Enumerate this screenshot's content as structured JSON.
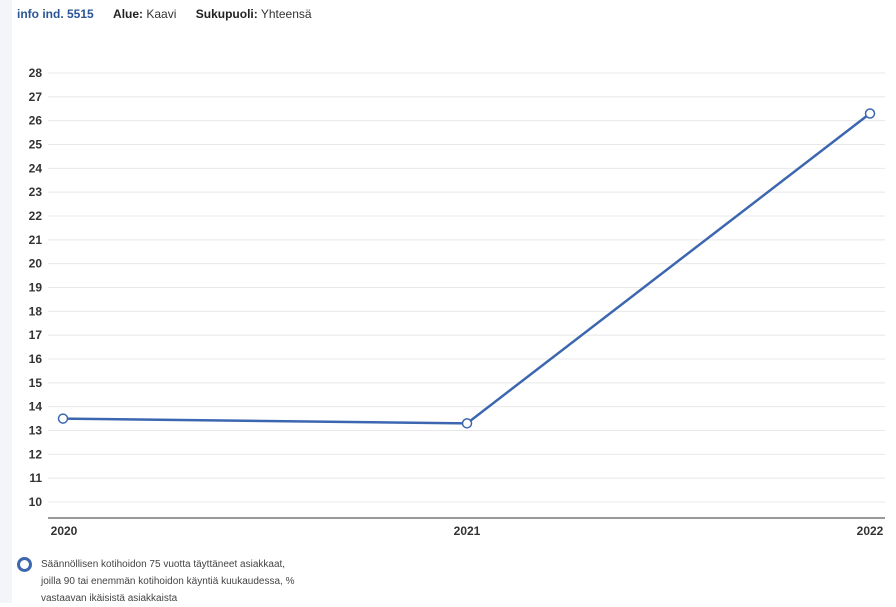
{
  "header": {
    "info_link": "info ind. 5515",
    "region_label": "Alue:",
    "region_value": "Kaavi",
    "gender_label": "Sukupuoli:",
    "gender_value": "Yhteensä"
  },
  "legend": {
    "text": "Säännöllisen kotihoidon 75 vuotta täyttäneet asiakkaat, joilla 90 tai enemmän kotihoidon käyntiä kuukaudessa, % vastaavan ikäisistä asiakkaista"
  },
  "colors": {
    "series": "#3c67b0",
    "grid": "#e8e8e8",
    "axis": "#999999"
  },
  "chart_data": {
    "type": "line",
    "title": "",
    "xlabel": "",
    "ylabel": "",
    "categories": [
      "2020",
      "2021",
      "2022"
    ],
    "series": [
      {
        "name": "Säännöllisen kotihoidon 75 vuotta täyttäneet asiakkaat, joilla 90 tai enemmän kotihoidon käyntiä kuukaudessa, % vastaavan ikäisistä asiakkaista",
        "values": [
          13.5,
          13.3,
          26.3
        ]
      }
    ],
    "ylim": [
      9,
      28.5
    ],
    "yticks": [
      10,
      11,
      12,
      13,
      14,
      15,
      16,
      17,
      18,
      19,
      20,
      21,
      22,
      23,
      24,
      25,
      26,
      27,
      28
    ],
    "grid": true,
    "legend_position": "bottom-left"
  }
}
